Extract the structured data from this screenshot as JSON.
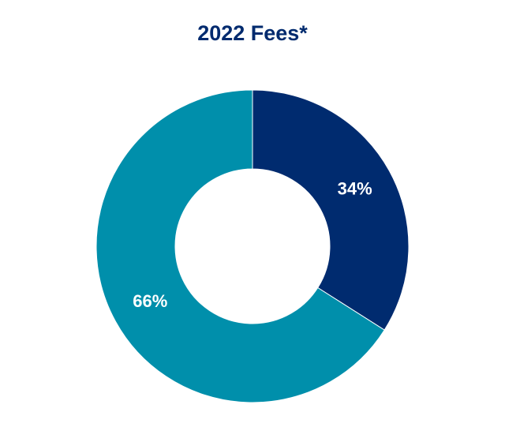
{
  "chart_data": {
    "type": "pie",
    "title": "2022 Fees*",
    "slices": [
      {
        "value": 34,
        "label": "34%",
        "color": "#002b6f"
      },
      {
        "value": 66,
        "label": "66%",
        "color": "#008fab"
      }
    ],
    "donut": true
  }
}
